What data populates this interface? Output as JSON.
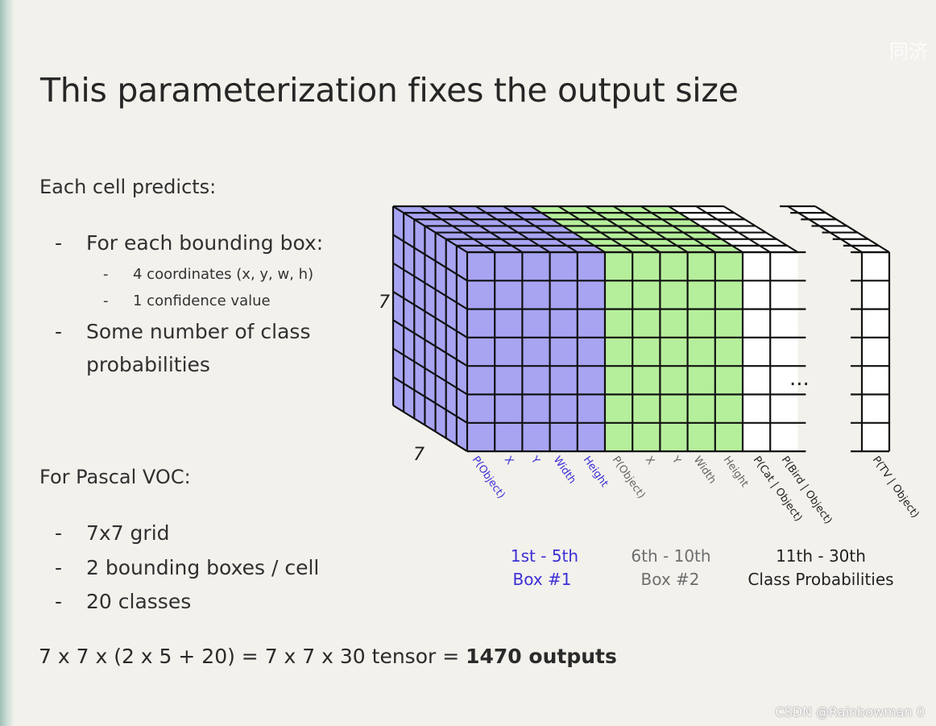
{
  "title": "This parameterization fixes the output size",
  "left": {
    "each_cell_heading": "Each cell predicts:",
    "bullets": [
      {
        "text": "For each bounding box:",
        "subs": [
          "4 coordinates (x, y, w, h)",
          "1 confidence value"
        ]
      },
      {
        "text_line1": "Some number of class",
        "text_line2": "probabilities"
      }
    ],
    "voc_heading": "For Pascal VOC:",
    "voc_items": [
      "7x7 grid",
      "2 bounding boxes / cell",
      "20 classes"
    ],
    "formula_plain": "7 x 7 x (2 x 5 + 20) = 7 x 7 x 30 tensor = ",
    "formula_bold": "1470 outputs"
  },
  "diagram": {
    "grid_rows": 7,
    "grid_depth": 7,
    "label_rows": "7",
    "label_depth": "7",
    "ellipsis": "...",
    "colors": {
      "box1": "#a8a4f2",
      "box2": "#b6ef9c",
      "classes": "#ffffff",
      "line": "#111111"
    },
    "box1_channels": [
      "P(Object)",
      "X",
      "Y",
      "Width",
      "Height"
    ],
    "box2_channels": [
      "P(Object)",
      "X",
      "Y",
      "Width",
      "Height"
    ],
    "class_channels": [
      "P(Cat | Object)",
      "P(Bird | Object)",
      "P(TV | Object)"
    ],
    "groups": [
      {
        "range": "1st - 5th",
        "name": "Box #1",
        "color": "#3b2fd6"
      },
      {
        "range": "6th - 10th",
        "name": "Box #2",
        "color": "#6e6e6e"
      },
      {
        "range": "11th - 30th",
        "name": "Class Probabilities",
        "color": "#222222"
      }
    ]
  },
  "watermarks": {
    "top": "同济",
    "bottom": "CSDN @Rainbowman 0"
  }
}
